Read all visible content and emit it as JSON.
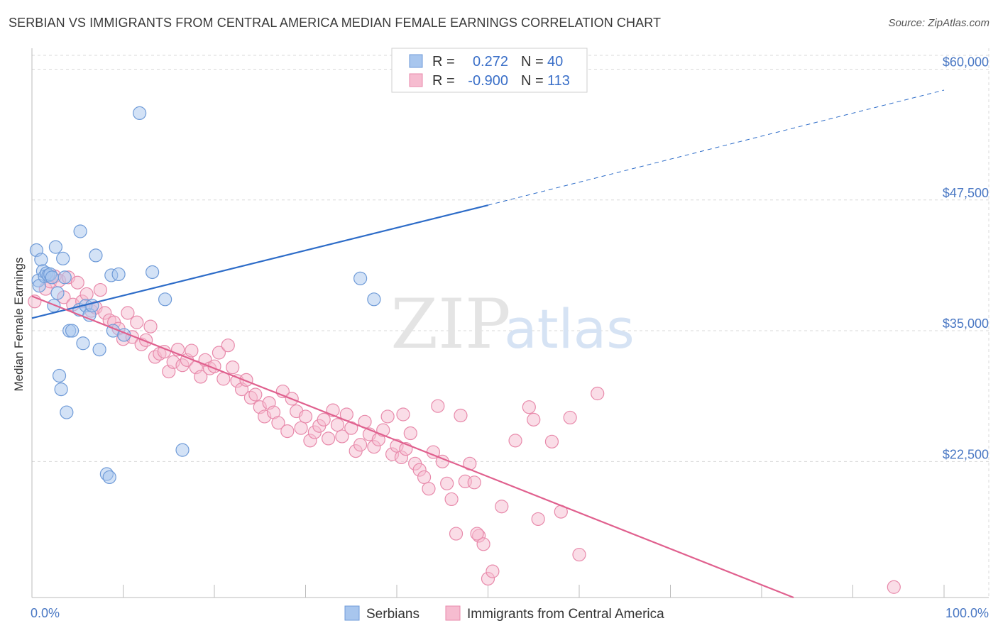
{
  "header": {
    "title": "SERBIAN VS IMMIGRANTS FROM CENTRAL AMERICA MEDIAN FEMALE EARNINGS CORRELATION CHART",
    "source": "Source: ZipAtlas.com"
  },
  "watermark": {
    "zip": "ZIP",
    "atlas": "atlas"
  },
  "legend": {
    "series1": {
      "r_label": "R =",
      "r_value": "0.272",
      "n_label": "N =",
      "n_value": "40"
    },
    "series2": {
      "r_label": "R =",
      "r_value": "-0.900",
      "n_label": "N =",
      "n_value": "113"
    }
  },
  "colors": {
    "blue_fill": "#a8c6ee",
    "blue_stroke": "#6f9bd8",
    "blue_line": "#2d6cc8",
    "pink_fill": "#f6bcd0",
    "pink_stroke": "#e88aab",
    "pink_line": "#e0608e",
    "grid": "#d8d8d8",
    "tick_text": "#4a78c4"
  },
  "chart_data": {
    "type": "scatter",
    "title": "SERBIAN VS IMMIGRANTS FROM CENTRAL AMERICA MEDIAN FEMALE EARNINGS CORRELATION CHART",
    "xlabel": "",
    "ylabel": "Median Female Earnings",
    "xlim": [
      0,
      100
    ],
    "ylim": [
      9500,
      62000
    ],
    "x_tick_labels": {
      "left": "0.0%",
      "right": "100.0%"
    },
    "y_ticks": [
      {
        "value": 60000,
        "label": "$60,000"
      },
      {
        "value": 47500,
        "label": "$47,500"
      },
      {
        "value": 35000,
        "label": "$35,000"
      },
      {
        "value": 22500,
        "label": "$22,500"
      }
    ],
    "grid": true,
    "legend_placement": "top-center",
    "series": [
      {
        "name": "Serbians",
        "color": "#a8c6ee",
        "trend": {
          "x0": 0,
          "y0": 36200,
          "x1": 50,
          "y1": 47000,
          "dashed_to_x": 100,
          "dashed_to_y": 58000
        },
        "points": [
          [
            0.5,
            42700
          ],
          [
            0.7,
            39800
          ],
          [
            0.8,
            39300
          ],
          [
            1.0,
            41800
          ],
          [
            1.2,
            40700
          ],
          [
            1.4,
            40200
          ],
          [
            1.6,
            40500
          ],
          [
            1.8,
            40300
          ],
          [
            2.0,
            40400
          ],
          [
            2.2,
            40100
          ],
          [
            2.4,
            37400
          ],
          [
            2.6,
            43000
          ],
          [
            2.8,
            38600
          ],
          [
            3.0,
            30700
          ],
          [
            3.2,
            29400
          ],
          [
            3.4,
            41900
          ],
          [
            3.6,
            40100
          ],
          [
            3.8,
            27200
          ],
          [
            4.1,
            35000
          ],
          [
            4.4,
            35000
          ],
          [
            5.2,
            37000
          ],
          [
            5.3,
            44500
          ],
          [
            5.6,
            33800
          ],
          [
            5.9,
            37400
          ],
          [
            6.3,
            36500
          ],
          [
            6.6,
            37400
          ],
          [
            7.0,
            42200
          ],
          [
            7.4,
            33200
          ],
          [
            8.2,
            21300
          ],
          [
            8.5,
            21000
          ],
          [
            8.7,
            40300
          ],
          [
            8.9,
            35000
          ],
          [
            9.5,
            40400
          ],
          [
            10.1,
            34600
          ],
          [
            11.8,
            55800
          ],
          [
            13.2,
            40600
          ],
          [
            14.6,
            38000
          ],
          [
            16.5,
            23600
          ],
          [
            37.5,
            38000
          ],
          [
            36.0,
            40000
          ]
        ]
      },
      {
        "name": "Immigrants from Central America",
        "color": "#f6bcd0",
        "trend": {
          "x0": 0,
          "y0": 38300,
          "x1": 83.5,
          "y1": 9500
        },
        "points": [
          [
            0.3,
            37800
          ],
          [
            1.5,
            39000
          ],
          [
            2.0,
            39700
          ],
          [
            2.5,
            40200
          ],
          [
            3.0,
            39800
          ],
          [
            3.5,
            38200
          ],
          [
            4.0,
            40100
          ],
          [
            4.5,
            37500
          ],
          [
            5.0,
            39600
          ],
          [
            5.5,
            37800
          ],
          [
            6.0,
            38500
          ],
          [
            6.5,
            36900
          ],
          [
            7.0,
            37200
          ],
          [
            7.5,
            38900
          ],
          [
            8.0,
            36700
          ],
          [
            8.5,
            36000
          ],
          [
            9.0,
            35800
          ],
          [
            9.5,
            35200
          ],
          [
            10.0,
            34200
          ],
          [
            10.5,
            36700
          ],
          [
            11.0,
            34400
          ],
          [
            11.5,
            35800
          ],
          [
            12.0,
            33700
          ],
          [
            12.5,
            34100
          ],
          [
            13.0,
            35400
          ],
          [
            13.5,
            32500
          ],
          [
            14.0,
            32800
          ],
          [
            14.5,
            33000
          ],
          [
            15.0,
            31100
          ],
          [
            15.5,
            32000
          ],
          [
            16.0,
            33200
          ],
          [
            16.5,
            31700
          ],
          [
            17.0,
            32200
          ],
          [
            17.5,
            33100
          ],
          [
            18.0,
            31500
          ],
          [
            18.5,
            30600
          ],
          [
            19.0,
            32200
          ],
          [
            19.5,
            31400
          ],
          [
            20.0,
            31600
          ],
          [
            20.5,
            32900
          ],
          [
            21.0,
            30400
          ],
          [
            21.5,
            33600
          ],
          [
            22.0,
            31500
          ],
          [
            22.5,
            30200
          ],
          [
            23.0,
            29400
          ],
          [
            23.5,
            30300
          ],
          [
            24.0,
            28600
          ],
          [
            24.5,
            28900
          ],
          [
            25.0,
            27700
          ],
          [
            25.5,
            26800
          ],
          [
            26.0,
            28100
          ],
          [
            26.5,
            27200
          ],
          [
            27.0,
            26200
          ],
          [
            27.5,
            29200
          ],
          [
            28.0,
            25400
          ],
          [
            28.5,
            28500
          ],
          [
            29.0,
            27300
          ],
          [
            29.5,
            25700
          ],
          [
            30.0,
            26800
          ],
          [
            30.5,
            24500
          ],
          [
            31.0,
            25300
          ],
          [
            31.5,
            25900
          ],
          [
            32.0,
            26500
          ],
          [
            32.5,
            24700
          ],
          [
            33.0,
            27400
          ],
          [
            33.5,
            26000
          ],
          [
            34.0,
            24900
          ],
          [
            34.5,
            27000
          ],
          [
            35.0,
            25700
          ],
          [
            35.5,
            23500
          ],
          [
            36.0,
            24100
          ],
          [
            36.5,
            26300
          ],
          [
            37.0,
            25100
          ],
          [
            37.5,
            23900
          ],
          [
            38.0,
            24600
          ],
          [
            38.5,
            25500
          ],
          [
            39.0,
            26800
          ],
          [
            39.5,
            23200
          ],
          [
            40.0,
            24000
          ],
          [
            40.5,
            22900
          ],
          [
            41.0,
            23700
          ],
          [
            41.5,
            25200
          ],
          [
            42.0,
            22300
          ],
          [
            42.5,
            21700
          ],
          [
            43.0,
            21000
          ],
          [
            43.5,
            19900
          ],
          [
            44.0,
            23400
          ],
          [
            44.5,
            27800
          ],
          [
            45.0,
            22500
          ],
          [
            45.5,
            20400
          ],
          [
            46.0,
            18900
          ],
          [
            46.5,
            15600
          ],
          [
            47.0,
            26900
          ],
          [
            47.5,
            20600
          ],
          [
            48.0,
            22300
          ],
          [
            48.5,
            20500
          ],
          [
            49.0,
            15400
          ],
          [
            49.5,
            14600
          ],
          [
            50.0,
            11300
          ],
          [
            51.5,
            18200
          ],
          [
            53.0,
            24500
          ],
          [
            54.5,
            27700
          ],
          [
            55.0,
            26500
          ],
          [
            55.5,
            17000
          ],
          [
            57.0,
            24400
          ],
          [
            58.0,
            17700
          ],
          [
            59.0,
            26700
          ],
          [
            60.0,
            13600
          ],
          [
            62.0,
            29000
          ],
          [
            48.8,
            15600
          ],
          [
            50.5,
            12000
          ],
          [
            94.5,
            10500
          ],
          [
            40.7,
            27000
          ]
        ]
      }
    ]
  },
  "bottom_legend": {
    "series1_label": "Serbians",
    "series2_label": "Immigrants from Central America"
  }
}
